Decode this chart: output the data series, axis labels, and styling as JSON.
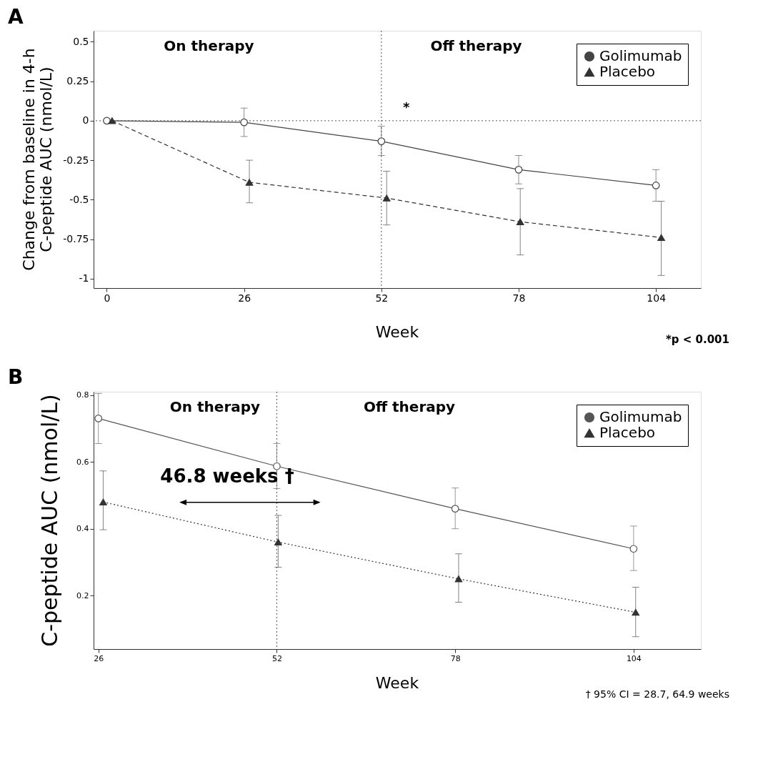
{
  "chart_data": [
    {
      "type": "line",
      "title": "A",
      "xlabel": "Week",
      "ylabel": "Change from baseline in 4-h\nC-peptide AUC (nmol/L)",
      "xlim": [
        -2.5,
        112.5
      ],
      "xticks": [
        0,
        26,
        52,
        78,
        104
      ],
      "ylim": [
        -1.06,
        0.57
      ],
      "yticks": [
        0.5,
        0.25,
        0,
        -0.25,
        -0.5,
        -0.75,
        -1
      ],
      "grid": false,
      "legend": "top right",
      "series": [
        {
          "name": "Golimumab",
          "color": "#444444",
          "marker": "circle",
          "line_style": "solid",
          "x": [
            0,
            26,
            52,
            78,
            104
          ],
          "values": [
            0,
            -0.01,
            -0.13,
            -0.31,
            -0.41
          ],
          "errors": [
            null,
            [
              -0.1,
              0.08
            ],
            [
              -0.22,
              -0.035
            ],
            [
              -0.4,
              -0.22
            ],
            [
              -0.51,
              -0.31
            ]
          ]
        },
        {
          "name": "Placebo",
          "color": "#333333",
          "marker": "triangle",
          "line_style": "dashed",
          "x": [
            1,
            27,
            53,
            78.3,
            105
          ],
          "values": [
            0,
            -0.39,
            -0.49,
            -0.64,
            -0.74
          ],
          "errors": [
            null,
            [
              -0.52,
              -0.25
            ],
            [
              -0.66,
              -0.32
            ],
            [
              -0.85,
              -0.43
            ],
            [
              -0.98,
              -0.51
            ]
          ]
        }
      ],
      "ref_lines": [
        {
          "axis": "x",
          "value": 52,
          "line_style": "dotted"
        },
        {
          "axis": "y",
          "value": 0,
          "line_style": "dotted"
        }
      ],
      "annotations": [
        "On therapy",
        "Off therapy",
        "*",
        "*p < 0.001"
      ]
    },
    {
      "type": "line",
      "title": "B",
      "xlabel": "Week",
      "ylabel": "C-peptide AUC (nmol/L)",
      "xlim": [
        25.3,
        113.8
      ],
      "xticks": [
        26,
        52,
        78,
        104
      ],
      "ylim": [
        0.04,
        0.81
      ],
      "yticks": [
        0.2,
        0.4,
        0.6,
        0.8
      ],
      "grid": false,
      "legend": "top right",
      "series": [
        {
          "name": "Golimumab",
          "color": "#555555",
          "marker": "circle",
          "line_style": "solid",
          "x": [
            26,
            52,
            78,
            104
          ],
          "values": [
            0.73,
            0.587,
            0.46,
            0.34
          ],
          "errors": [
            [
              0.655,
              0.805
            ],
            [
              0.52,
              0.655
            ],
            [
              0.4,
              0.522
            ],
            [
              0.275,
              0.408
            ]
          ]
        },
        {
          "name": "Placebo",
          "color": "#333333",
          "marker": "triangle",
          "line_style": "dotted",
          "x": [
            26.7,
            52.2,
            78.5,
            104.3
          ],
          "values": [
            0.48,
            0.36,
            0.25,
            0.15
          ],
          "errors": [
            [
              0.397,
              0.573
            ],
            [
              0.285,
              0.44
            ],
            [
              0.18,
              0.325
            ],
            [
              0.077,
              0.225
            ]
          ]
        }
      ],
      "ref_lines": [
        {
          "axis": "x",
          "value": 52,
          "line_style": "dotted"
        }
      ],
      "annotations": [
        "On therapy",
        "Off therapy",
        "46.8  weeks †",
        "† 95% CI = 28.7, 64.9 weeks"
      ]
    }
  ]
}
